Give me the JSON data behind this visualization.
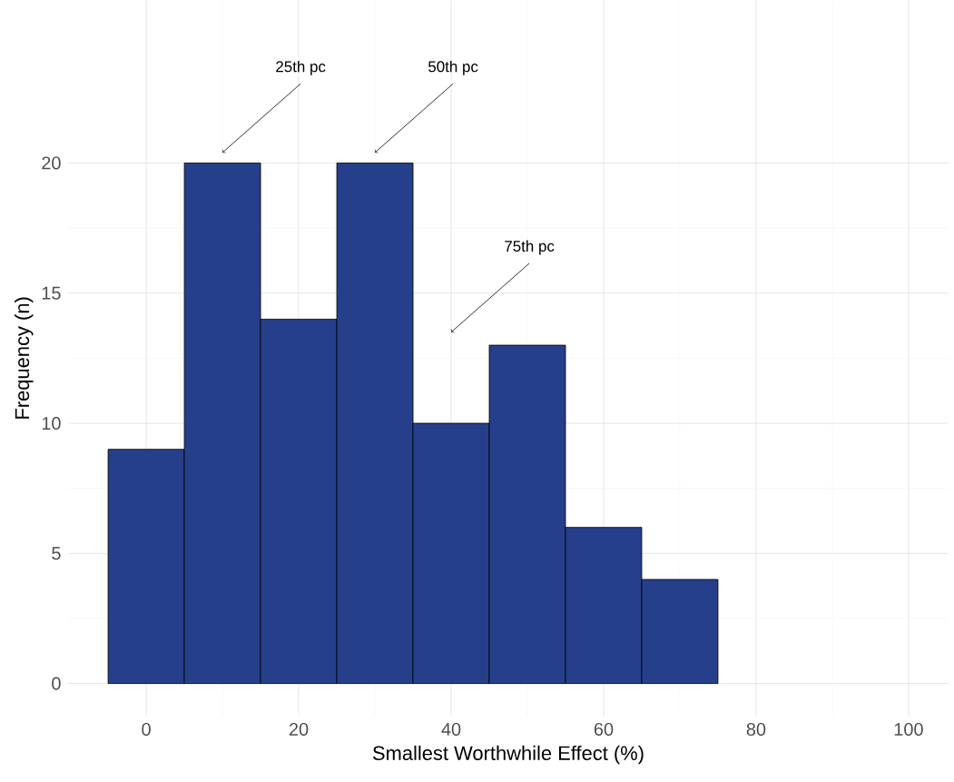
{
  "chart_data": {
    "type": "histogram",
    "xlabel": "Smallest Worthwhile Effect (%)",
    "ylabel": "Frequency (n)",
    "bins": [
      -5,
      5,
      15,
      25,
      35,
      45,
      55,
      65,
      75
    ],
    "values": [
      9,
      20,
      14,
      20,
      10,
      13,
      6,
      4
    ],
    "color": "#253f8a",
    "xlim": [
      -10.25,
      105.25
    ],
    "ylim": [
      -1.25,
      26.25
    ],
    "xticks": [
      0,
      20,
      40,
      60,
      80,
      100
    ],
    "yticks": [
      0,
      5,
      10,
      15,
      20
    ],
    "grid": true,
    "annotations": [
      {
        "text": "25th pc",
        "x": 10,
        "y": 20.4
      },
      {
        "text": "50th pc",
        "x": 30,
        "y": 20.4
      },
      {
        "text": "75th pc",
        "x": 40,
        "y": 13.5
      }
    ]
  }
}
